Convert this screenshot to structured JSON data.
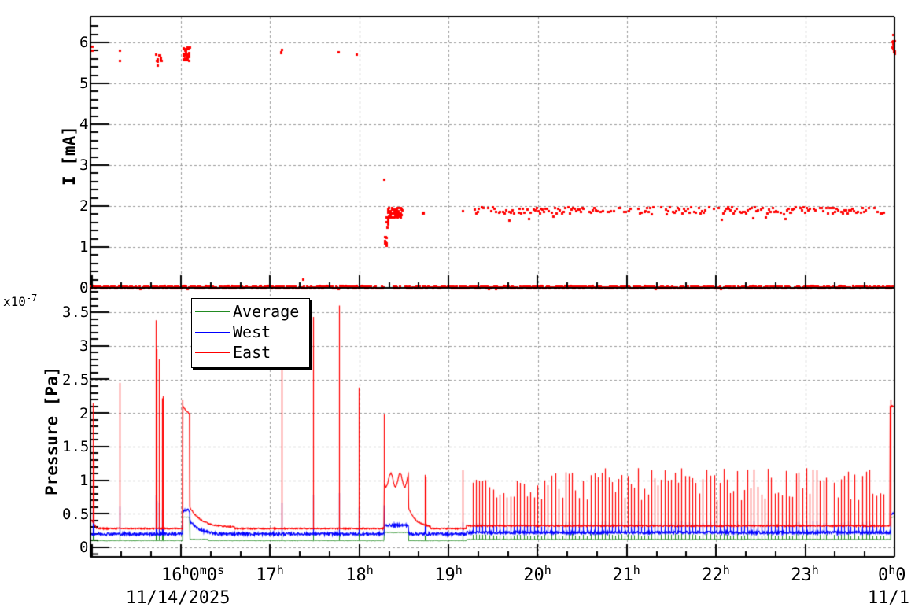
{
  "chart_data": [
    {
      "type": "scatter",
      "panel": "top",
      "title": "",
      "ylabel": "I [mA]",
      "xlabel": "",
      "ylim": [
        0,
        6.6
      ],
      "yticks": [
        "0",
        "1",
        "2",
        "3",
        "4",
        "5",
        "6"
      ],
      "grid": true,
      "color": "#ff0000",
      "series": [
        {
          "name": "I",
          "description": "Beam current samples; ~0 baseline throughout, ~5.5-5.9 mA clusters before 18h, ramp to ~1.9 mA after 18:17, steady ~1.9 mA from 19:15 to 23:55, ~5.9 mA at 0h",
          "points": [
            {
              "t": "15:00",
              "v": 5.85
            },
            {
              "t": "15:18",
              "v": 5.8
            },
            {
              "t": "15:18",
              "v": 5.6
            },
            {
              "t": "15:45",
              "v": 5.7
            },
            {
              "t": "15:46",
              "v": 5.5
            },
            {
              "t": "15:47",
              "v": 5.6
            },
            {
              "t": "16:02",
              "v": 5.8
            },
            {
              "t": "16:03",
              "v": 5.6
            },
            {
              "t": "16:04",
              "v": 5.75
            },
            {
              "t": "16:05",
              "v": 5.85
            },
            {
              "t": "17:07",
              "v": 5.85
            },
            {
              "t": "17:08",
              "v": 5.75
            },
            {
              "t": "17:46",
              "v": 5.78
            },
            {
              "t": "17:59",
              "v": 5.72
            },
            {
              "t": "17:22",
              "v": 0.22
            },
            {
              "t": "18:17",
              "v": 2.65
            },
            {
              "t": "18:18",
              "v": 1.5
            },
            {
              "t": "18:18",
              "v": 1.1
            },
            {
              "t": "18:20",
              "v": 1.7
            },
            {
              "t": "18:22",
              "v": 1.9
            },
            {
              "t": "18:27",
              "v": 1.85
            },
            {
              "t": "18:32",
              "v": 1.9
            },
            {
              "t": "18:44",
              "v": 1.85
            },
            {
              "t": "19:10",
              "v": 1.88
            },
            {
              "t": "19:15",
              "v": 1.82
            },
            {
              "t": "19:30",
              "v": 1.9
            },
            {
              "t": "19:40",
              "v": 1.65
            },
            {
              "t": "20:00",
              "v": 1.92
            },
            {
              "t": "20:30",
              "v": 1.9
            },
            {
              "t": "21:00",
              "v": 1.92
            },
            {
              "t": "21:30",
              "v": 1.88
            },
            {
              "t": "22:00",
              "v": 1.9
            },
            {
              "t": "22:30",
              "v": 1.92
            },
            {
              "t": "23:00",
              "v": 1.95
            },
            {
              "t": "23:30",
              "v": 1.93
            },
            {
              "t": "23:55",
              "v": 1.9
            },
            {
              "t": "23:59",
              "v": 5.9
            },
            {
              "t": "23:59",
              "v": 6.15
            },
            {
              "t": "23:59",
              "v": 5.75
            }
          ]
        }
      ]
    },
    {
      "type": "line",
      "panel": "bottom",
      "title": "",
      "ylabel": "Pressure [Pa]",
      "y_multiplier": "x10^-7",
      "xlabel": "",
      "ylim": [
        0,
        3.85
      ],
      "yticks": [
        "0",
        "0.5",
        "1",
        "1.5",
        "2",
        "2.5",
        "3",
        "3.5"
      ],
      "grid": true,
      "legend_position": "upper-left",
      "x": [
        "15:00",
        "16:00",
        "17:00",
        "18:00",
        "19:00",
        "20:00",
        "21:00",
        "22:00",
        "23:00",
        "00:00"
      ],
      "series": [
        {
          "name": "Average",
          "color": "#228b22",
          "baseline": 0.1,
          "values": [
            0.1,
            0.1,
            0.1,
            0.1,
            0.12,
            0.12,
            0.12,
            0.12,
            0.12,
            0.45
          ]
        },
        {
          "name": "West",
          "color": "#0000ff",
          "baseline": 0.2,
          "values": [
            0.2,
            0.2,
            0.2,
            0.2,
            0.2,
            0.23,
            0.23,
            0.23,
            0.23,
            0.6
          ]
        },
        {
          "name": "East",
          "color": "#ff0000",
          "baseline": 0.28,
          "values": [
            0.3,
            0.3,
            0.27,
            0.27,
            0.28,
            0.35,
            0.35,
            0.35,
            0.35,
            2.2
          ],
          "spikes": [
            {
              "t": "15:01",
              "v": 2.15
            },
            {
              "t": "15:18",
              "v": 2.45
            },
            {
              "t": "15:43",
              "v": 3.38
            },
            {
              "t": "15:44",
              "v": 2.8
            },
            {
              "t": "15:47",
              "v": 2.22
            },
            {
              "t": "16:02",
              "v": 2.22
            },
            {
              "t": "17:08",
              "v": 2.8
            },
            {
              "t": "17:30",
              "v": 3.43
            },
            {
              "t": "17:47",
              "v": 3.6
            },
            {
              "t": "17:59",
              "v": 2.38
            },
            {
              "t": "18:17",
              "v": 1.98
            },
            {
              "t": "18:37",
              "v": 1.08
            },
            {
              "t": "19:10",
              "v": 1.15
            },
            {
              "t": "19:20 to 23:55 periodic",
              "v": 1.15
            },
            {
              "t": "23:59",
              "v": 2.25
            }
          ],
          "plateaus": [
            {
              "from": "16:02",
              "to": "16:05",
              "v": 2.1
            },
            {
              "from": "18:17",
              "to": "18:33",
              "v": 1.05
            }
          ]
        }
      ]
    }
  ],
  "x_axis": {
    "ticks": [
      {
        "hour": "16",
        "suffix": "h",
        "extra": "0m0s"
      },
      {
        "hour": "17",
        "suffix": "h"
      },
      {
        "hour": "18",
        "suffix": "h"
      },
      {
        "hour": "19",
        "suffix": "h"
      },
      {
        "hour": "20",
        "suffix": "h"
      },
      {
        "hour": "21",
        "suffix": "h"
      },
      {
        "hour": "22",
        "suffix": "h"
      },
      {
        "hour": "23",
        "suffix": "h"
      },
      {
        "hour": "0",
        "suffix": "h",
        "extra": "0"
      }
    ],
    "date_start": "11/14/2025",
    "date_end": "11/1"
  },
  "top_panel": {
    "ylabel": "I [mA]",
    "yticks": [
      "0",
      "1",
      "2",
      "3",
      "4",
      "5",
      "6"
    ]
  },
  "bottom_panel": {
    "ylabel": "Pressure [Pa]",
    "multiplier_base": "x10",
    "multiplier_exp": "-7",
    "yticks": [
      "0",
      "0.5",
      "1",
      "1.5",
      "2",
      "2.5",
      "3",
      "3.5"
    ]
  },
  "legend": {
    "items": [
      {
        "label": "Average",
        "color": "#228b22"
      },
      {
        "label": "West",
        "color": "#0000ff"
      },
      {
        "label": "East",
        "color": "#ff0000"
      }
    ]
  }
}
